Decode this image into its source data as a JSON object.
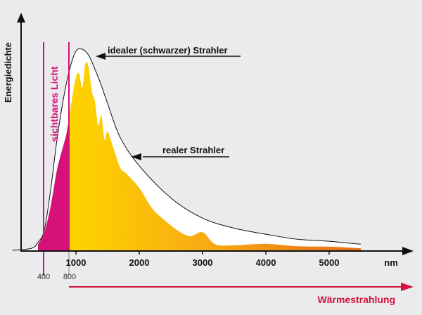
{
  "ylabel": "Energiedichte",
  "xunit": "nm",
  "visible_band": {
    "label": "sichtbares Licht",
    "start": "400",
    "end": "800",
    "color": "#d6127a"
  },
  "annotations": {
    "ideal": "idealer (schwarzer) Strahler",
    "real": "realer Strahler"
  },
  "thermal": {
    "label": "Wärmestrahlung",
    "color": "#d3133c"
  },
  "colors": {
    "background": "#ebebed",
    "gradient_start": "#ffd400",
    "gradient_mid": "#f7a814",
    "gradient_end": "#e0601a",
    "axis": "#111111"
  },
  "chart_data": {
    "type": "area",
    "xticks": [
      1000,
      2000,
      3000,
      4000,
      5000
    ],
    "xlim": [
      0,
      5500
    ],
    "series": [
      {
        "name": "idealer (schwarzer) Strahler",
        "x": [
          0,
          300,
          400,
          500,
          600,
          700,
          800,
          900,
          1000,
          1100,
          1200,
          1300,
          1400,
          1500,
          1700,
          2000,
          2500,
          3000,
          3500,
          4000,
          4500,
          5000,
          5500
        ],
        "values": [
          0,
          1,
          4,
          10,
          30,
          55,
          75,
          90,
          99,
          100,
          97,
          90,
          82,
          73,
          56,
          42,
          26,
          16,
          11,
          8,
          5.5,
          4.5,
          3
        ]
      },
      {
        "name": "realer Strahler",
        "x": [
          400,
          500,
          600,
          700,
          800,
          850,
          900,
          950,
          1000,
          1050,
          1100,
          1150,
          1200,
          1250,
          1300,
          1350,
          1400,
          1450,
          1500,
          1600,
          1700,
          1800,
          2000,
          2200,
          2400,
          2600,
          2800,
          3000,
          3200,
          3500,
          4000,
          4500,
          5000,
          5500
        ],
        "values": [
          3,
          9,
          22,
          40,
          52,
          58,
          68,
          78,
          86,
          88,
          81,
          93,
          91,
          79,
          74,
          62,
          67,
          55,
          59,
          50,
          41,
          38,
          31,
          21,
          15,
          10,
          7,
          9,
          3,
          2.5,
          3.2,
          2,
          1.8,
          1
        ]
      }
    ]
  }
}
